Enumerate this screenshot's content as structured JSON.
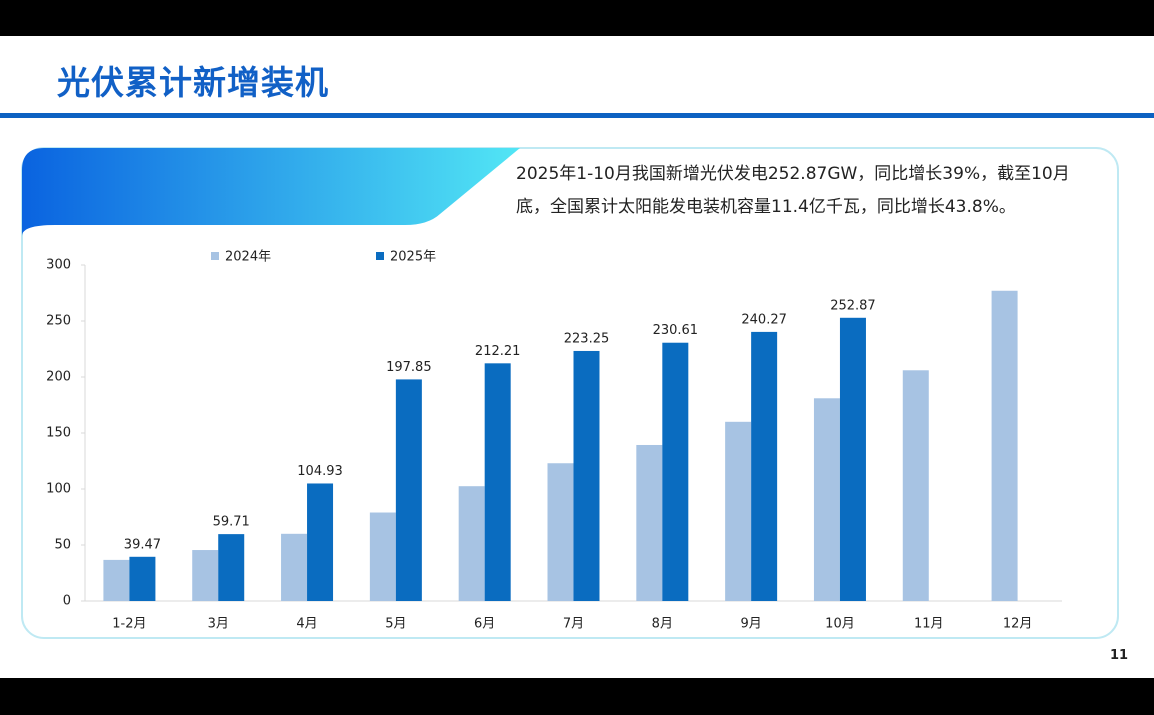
{
  "header": {
    "title": "光伏累计新增装机"
  },
  "description": "2025年1-10月我国新增光伏发电252.87GW，同比增长39%，截至10月底，全国累计太阳能发电装机容量11.4亿千瓦，同比增长43.8%。",
  "page_number": "11",
  "chart_data": {
    "type": "bar",
    "categories": [
      "1-2月",
      "3月",
      "4月",
      "5月",
      "6月",
      "7月",
      "8月",
      "9月",
      "10月",
      "11月",
      "12月"
    ],
    "series": [
      {
        "name": "2024年",
        "color": "#a7c3e3",
        "show_labels": false,
        "values": [
          36.7,
          45.5,
          60,
          79,
          102.5,
          123,
          139.3,
          160,
          181,
          206,
          277
        ]
      },
      {
        "name": "2025年",
        "color": "#0a6cc0",
        "show_labels": true,
        "values": [
          39.47,
          59.71,
          104.93,
          197.85,
          212.21,
          223.25,
          230.61,
          240.27,
          252.87,
          null,
          null
        ]
      }
    ],
    "ylim": [
      0,
      300
    ],
    "yticks": [
      0,
      50,
      100,
      150,
      200,
      250,
      300
    ],
    "grid": false,
    "legend": "top"
  }
}
